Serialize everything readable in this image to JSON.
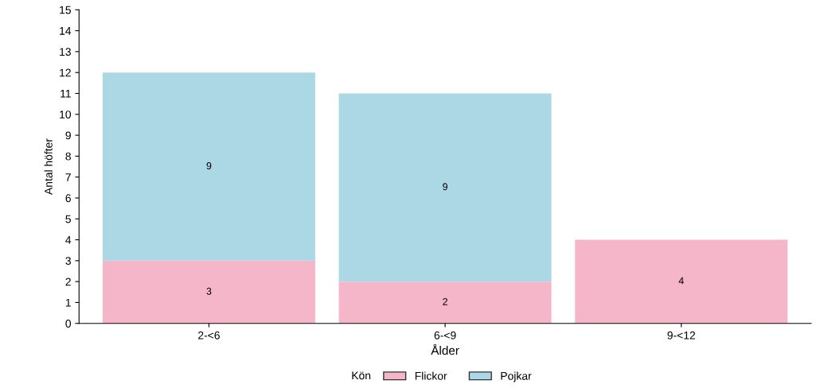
{
  "chart_data": {
    "type": "bar",
    "stacked": true,
    "xlabel": "Ålder",
    "ylabel": "Antal höfter",
    "legend_title": "Kön",
    "legend": "bottom",
    "categories": [
      "2-<6",
      "6-<9",
      "9-<12"
    ],
    "series": [
      {
        "name": "Flickor",
        "color": "#f4b6c8",
        "values": [
          3,
          2,
          4
        ],
        "value_labels": [
          "3",
          "2",
          "4"
        ]
      },
      {
        "name": "Pojkar",
        "color": "#acd8e6",
        "values": [
          9,
          9,
          0
        ],
        "value_labels": [
          "9",
          "9",
          null
        ]
      }
    ],
    "ylim": [
      0,
      15
    ],
    "yticks": [
      0,
      1,
      2,
      3,
      4,
      5,
      6,
      7,
      8,
      9,
      10,
      11,
      12,
      13,
      14,
      15
    ],
    "grid": false
  }
}
